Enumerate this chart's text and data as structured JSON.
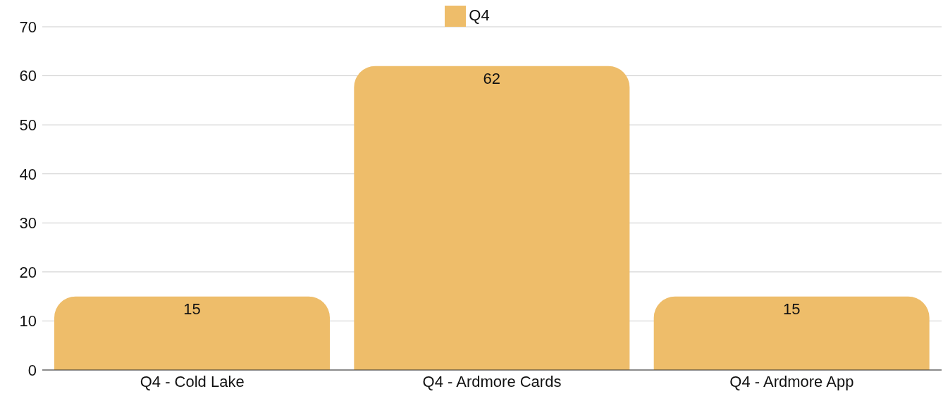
{
  "chart_data": {
    "type": "bar",
    "categories": [
      "Q4 - Cold Lake",
      "Q4 - Ardmore Cards",
      "Q4 - Ardmore App"
    ],
    "series": [
      {
        "name": "Q4",
        "color": "#eebd6a",
        "values": [
          15,
          62,
          15
        ]
      }
    ],
    "ylim": [
      0,
      70
    ],
    "yticks": [
      0,
      10,
      20,
      30,
      40,
      50,
      60,
      70
    ],
    "grid": "y",
    "legend": "top",
    "data_labels": true
  }
}
